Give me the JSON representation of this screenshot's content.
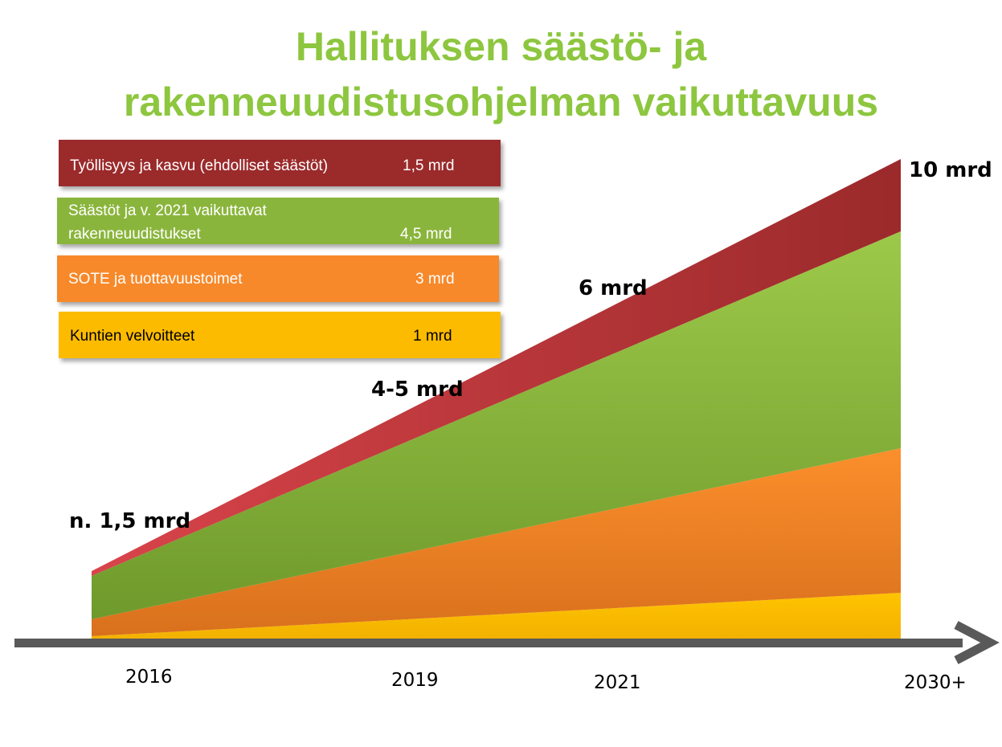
{
  "title_line1": "Hallituksen säästö- ja",
  "title_line2": "rakenneuudistusohjelman vaikuttavuus",
  "legend": [
    {
      "label": "Työllisyys ja kasvu  (ehdolliset säästöt)",
      "value": "1,5 mrd",
      "color": "#9b2a2b"
    },
    {
      "label1": "Säästöt ja v. 2021 vaikuttavat",
      "label2": "rakenneuudistukset",
      "value": "4,5 mrd",
      "color": "#8ab53c"
    },
    {
      "label": "SOTE ja tuottavuustoimet",
      "value": "3 mrd",
      "color": "#f7892a"
    },
    {
      "label": "Kuntien velvoitteet",
      "value": "1 mrd",
      "color": "#fdbb00"
    }
  ],
  "annotations": [
    "n. 1,5 mrd",
    "4-5 mrd",
    "6 mrd",
    "10 mrd"
  ],
  "x_labels": [
    "2016",
    "2019",
    "2021",
    "2030+"
  ],
  "chart_data": {
    "type": "area",
    "stacked": true,
    "x": [
      "2016",
      "2030+"
    ],
    "series": [
      {
        "name": "Kuntien velvoitteet",
        "values": [
          0.1,
          1
        ],
        "color": "#fdbb00"
      },
      {
        "name": "SOTE ja tuottavuustoimet",
        "values": [
          0.35,
          3
        ],
        "color": "#f7892a"
      },
      {
        "name": "Säästöt ja v. 2021 vaikuttavat rakenneuudistukset",
        "values": [
          0.9,
          4.5
        ],
        "color": "#8ab53c"
      },
      {
        "name": "Työllisyys ja kasvu (ehdolliset säästöt)",
        "values": [
          0.1,
          1.5
        ],
        "color": "#c0393b"
      }
    ],
    "ylim": [
      0,
      10
    ],
    "axis_arrow_color": "#595959"
  }
}
